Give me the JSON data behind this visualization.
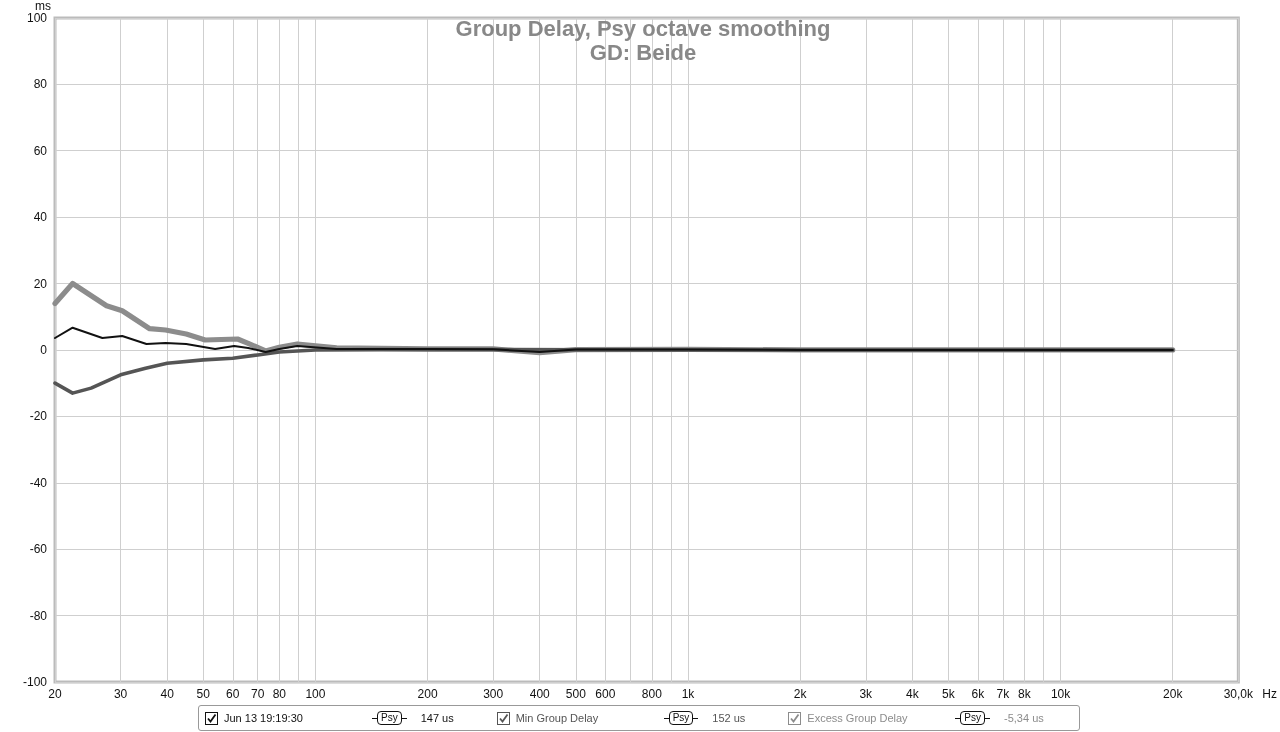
{
  "chart_data": {
    "type": "line",
    "title": "Group Delay, Psy octave smoothing",
    "subtitle": "GD: Beide",
    "xlabel": "Hz",
    "ylabel": "ms",
    "log": "x",
    "grid": true,
    "legend": "bottom",
    "marker": "none",
    "line_style": "solid",
    "xlim": [
      20,
      30000
    ],
    "ylim": [
      -100,
      100
    ],
    "xticks": [
      20,
      30,
      40,
      50,
      60,
      70,
      80,
      {
        "value": 90,
        "label": null
      },
      100,
      200,
      300,
      400,
      500,
      600,
      {
        "value": 700,
        "label": null
      },
      800,
      {
        "value": 900,
        "label": null
      },
      {
        "value": 1000,
        "label": "1k"
      },
      {
        "value": 2000,
        "label": "2k"
      },
      {
        "value": 3000,
        "label": "3k"
      },
      {
        "value": 4000,
        "label": "4k"
      },
      {
        "value": 5000,
        "label": "5k"
      },
      {
        "value": 6000,
        "label": "6k"
      },
      {
        "value": 7000,
        "label": "7k"
      },
      {
        "value": 8000,
        "label": "8k"
      },
      {
        "value": 9000,
        "label": null
      },
      {
        "value": 10000,
        "label": "10k"
      },
      {
        "value": 20000,
        "label": "20k"
      },
      {
        "value": 30000,
        "label": "30,0k"
      }
    ],
    "yticks": [
      -100,
      -80,
      -60,
      -40,
      -20,
      0,
      20,
      40,
      60,
      80,
      100
    ],
    "annotations": [
      "Psy",
      "147 us",
      "Psy",
      "152 us",
      "Psy",
      "-5,34 us"
    ],
    "series": [
      {
        "name": "Jun 13 19:19:30",
        "color": "#111111",
        "x": [
          20,
          22.3,
          26.8,
          30.3,
          35.2,
          39.6,
          45,
          53.8,
          60.5,
          66,
          73.5,
          80,
          89.4,
          114,
          150,
          200,
          300,
          400,
          500,
          1000,
          2000,
          20000
        ],
        "values": [
          3.6,
          6.7,
          3.6,
          4.2,
          1.8,
          2.1,
          1.8,
          0.3,
          1.2,
          0.6,
          -0.6,
          0.3,
          1.2,
          0.3,
          0.3,
          0.3,
          0.2,
          -0.6,
          0.1,
          0.1,
          0,
          0
        ]
      },
      {
        "name": "Min Group Delay",
        "color": "#555555",
        "x": [
          20,
          22.3,
          25,
          30,
          35,
          40,
          50,
          60,
          70,
          80,
          100,
          150,
          300,
          1000,
          20000
        ],
        "values": [
          -10,
          -13,
          -11.5,
          -7.5,
          -5.5,
          -4,
          -3,
          -2.5,
          -1.5,
          -0.6,
          0,
          0.1,
          0.1,
          0,
          0
        ]
      },
      {
        "name": "Excess Group Delay",
        "color": "#8c8c8c",
        "x": [
          20,
          22.3,
          27.5,
          30.3,
          35.9,
          39.6,
          45,
          50.6,
          61.8,
          66,
          73.5,
          80,
          89.4,
          114,
          150,
          200,
          300,
          400,
          500,
          1000,
          2000,
          20000
        ],
        "values": [
          14,
          20,
          13.3,
          11.8,
          6.4,
          6,
          4.8,
          3,
          3.3,
          2,
          -0.3,
          0.8,
          1.8,
          0.6,
          0.5,
          0.3,
          0.3,
          -0.8,
          0.1,
          0.2,
          0,
          0
        ]
      }
    ]
  }
}
